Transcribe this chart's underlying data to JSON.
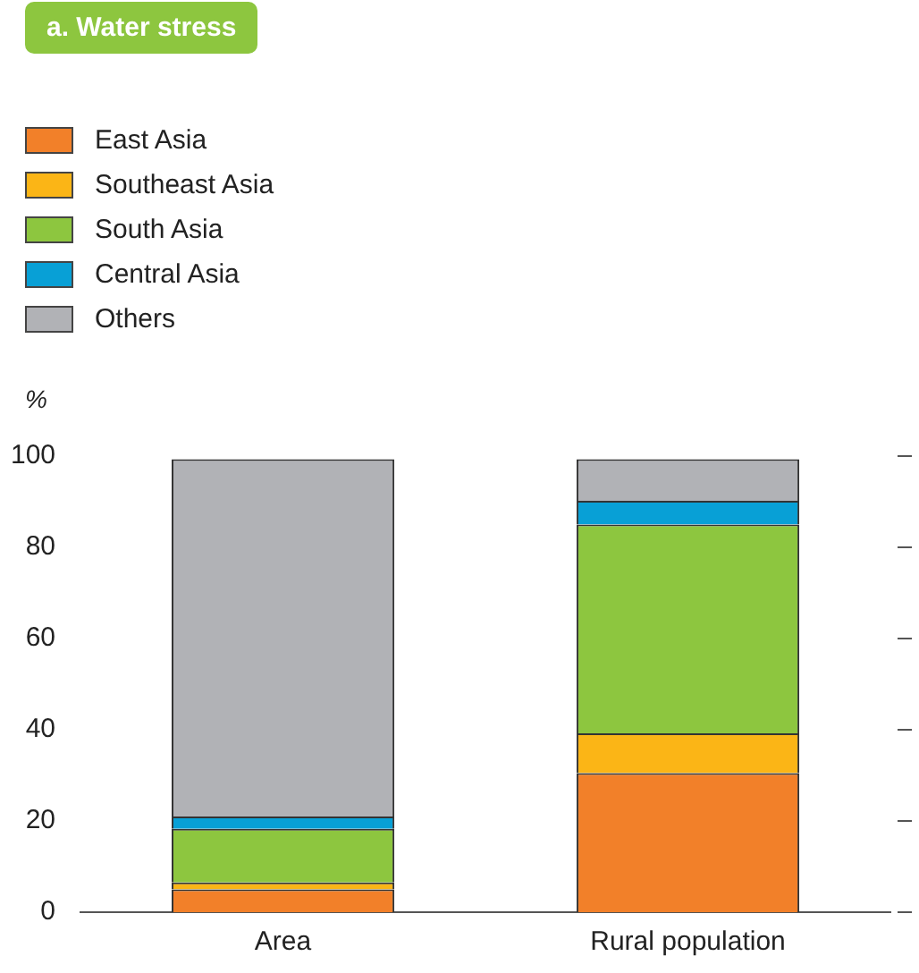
{
  "chart_data": {
    "type": "bar",
    "title": "a. Water stress",
    "ylabel": "%",
    "categories": [
      "Area",
      "Rural population"
    ],
    "stacked": true,
    "legend": "top left",
    "grid": false,
    "series": [
      {
        "name": "East Asia",
        "color": "#f28029",
        "values": [
          5.0,
          30.5
        ]
      },
      {
        "name": "Southeast Asia",
        "color": "#fbb516",
        "values": [
          1.5,
          8.7
        ]
      },
      {
        "name": "South Asia",
        "color": "#8dc63f",
        "values": [
          11.8,
          45.8
        ]
      },
      {
        "name": "Central Asia",
        "color": "#08a0d6",
        "values": [
          2.7,
          5.2
        ]
      },
      {
        "name": "Others",
        "color": "#b1b2b6",
        "values": [
          78.3,
          9.1
        ]
      }
    ],
    "ylim": [
      0,
      100
    ],
    "yticks": [
      0,
      20,
      40,
      60,
      80,
      100
    ]
  }
}
